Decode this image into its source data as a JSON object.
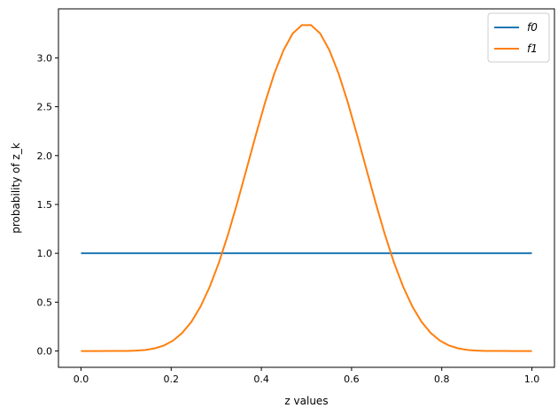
{
  "chart_data": {
    "type": "line",
    "xlabel": "z values",
    "ylabel": "probability of z_k",
    "xlim": [
      -0.05,
      1.05
    ],
    "ylim": [
      -0.167,
      3.502
    ],
    "xticks": [
      "0.0",
      "0.2",
      "0.4",
      "0.6",
      "0.8",
      "1.0"
    ],
    "yticks": [
      "0.0",
      "0.5",
      "1.0",
      "1.5",
      "2.0",
      "2.5",
      "3.0"
    ],
    "grid": false,
    "legend_position": "top-right",
    "x_points": "50 evenly spaced points from 0 to 1",
    "series": [
      {
        "name": "f0",
        "color": "#1f77b4",
        "values_half": [
          1,
          1,
          1,
          1,
          1,
          1,
          1,
          1,
          1,
          1,
          1,
          1,
          1,
          1,
          1,
          1,
          1,
          1,
          1,
          1,
          1,
          1,
          1,
          1,
          1
        ]
      },
      {
        "name": "f1",
        "color": "#ff7f0e",
        "values_half": [
          0,
          5.6e-09,
          1.2e-06,
          2.6e-05,
          0.000219,
          0.00109,
          0.0039,
          0.01108,
          0.02659,
          0.0559,
          0.1062,
          0.1849,
          0.2995,
          0.4567,
          0.6594,
          0.908,
          1.199,
          1.523,
          1.866,
          2.211,
          2.542,
          2.838,
          3.077,
          3.249,
          3.335
        ]
      }
    ]
  }
}
